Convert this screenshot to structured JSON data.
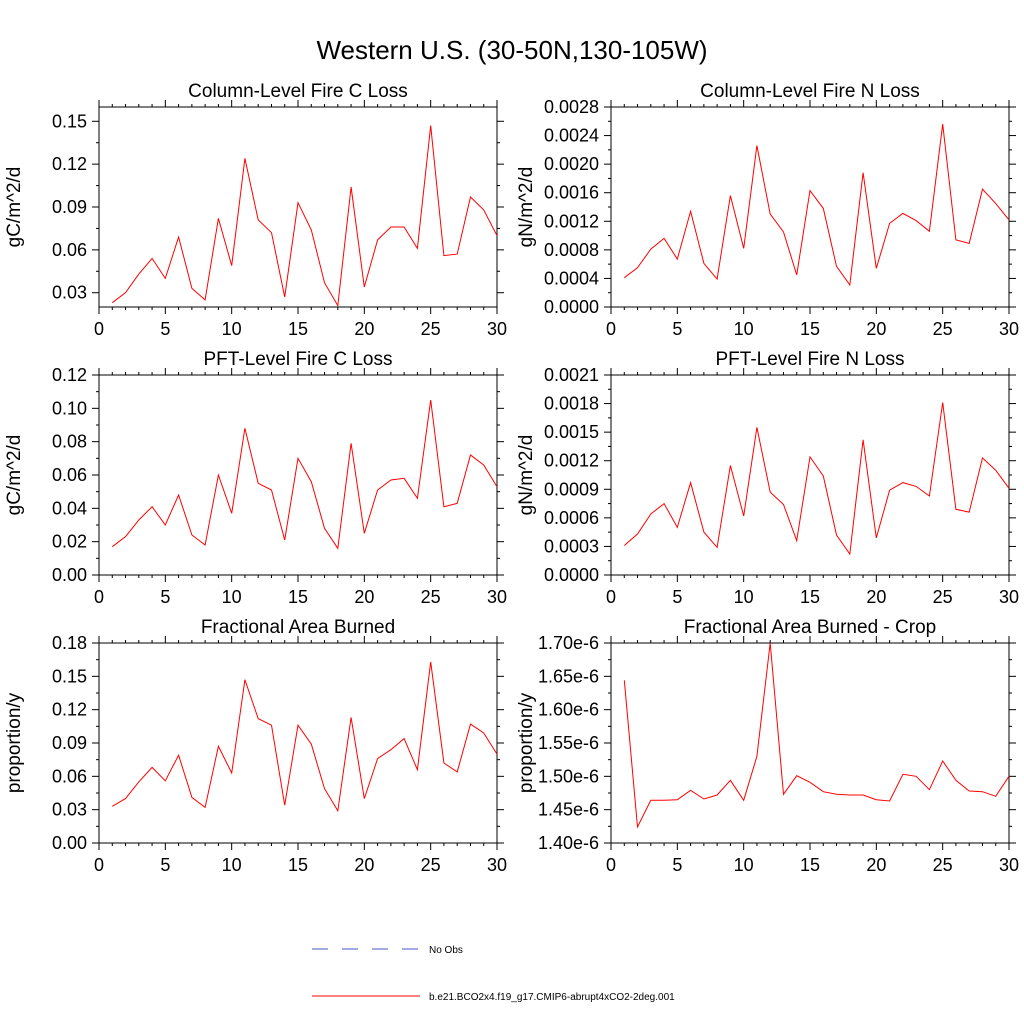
{
  "figure": {
    "title": "Western U.S. (30-50N,130-105W)",
    "series_color": "#ff0000",
    "obs_color": "#4a55c8"
  },
  "legend": {
    "items": [
      {
        "label": "No Obs",
        "style": "dashed",
        "color": "#4a55c8"
      },
      {
        "label": "b.e21.BCO2x4.f19_g17.CMIP6-abrupt4xCO2-2deg.001",
        "style": "solid",
        "color": "#ff0000"
      }
    ]
  },
  "chart_data": [
    {
      "type": "line",
      "title": "Column-Level Fire C Loss",
      "ylabel": "gC/m^2/d",
      "xlim": [
        0,
        30
      ],
      "xticks": [
        0,
        5,
        10,
        15,
        20,
        25,
        30
      ],
      "xticklabels": [
        "0",
        "5",
        "10",
        "15",
        "20",
        "25",
        "30"
      ],
      "ylim": [
        0.02,
        0.16
      ],
      "yticks": [
        0.03,
        0.06,
        0.09,
        0.12,
        0.15
      ],
      "yticklabels": [
        "0.03",
        "0.06",
        "0.09",
        "0.12",
        "0.15"
      ],
      "x": [
        1,
        2,
        3,
        4,
        5,
        6,
        7,
        8,
        9,
        10,
        11,
        12,
        13,
        14,
        15,
        16,
        17,
        18,
        19,
        20,
        21,
        22,
        23,
        24,
        25,
        26,
        27,
        28,
        29,
        30
      ],
      "series": [
        {
          "name": "b.e21.BCO2x4.f19_g17.CMIP6-abrupt4xCO2-2deg.001",
          "values": [
            0.023,
            0.03,
            0.043,
            0.054,
            0.04,
            0.069,
            0.033,
            0.025,
            0.082,
            0.049,
            0.124,
            0.081,
            0.072,
            0.027,
            0.093,
            0.074,
            0.037,
            0.021,
            0.104,
            0.034,
            0.067,
            0.076,
            0.076,
            0.061,
            0.147,
            0.056,
            0.057,
            0.097,
            0.088,
            0.07
          ]
        }
      ]
    },
    {
      "type": "line",
      "title": "Column-Level Fire N Loss",
      "ylabel": "gN/m^2/d",
      "xlim": [
        0,
        30
      ],
      "xticks": [
        0,
        5,
        10,
        15,
        20,
        25,
        30
      ],
      "xticklabels": [
        "0",
        "5",
        "10",
        "15",
        "20",
        "25",
        "30"
      ],
      "ylim": [
        0.0,
        0.0028
      ],
      "yticks": [
        0.0,
        0.0004,
        0.0008,
        0.0012,
        0.0016,
        0.002,
        0.0024,
        0.0028
      ],
      "yticklabels": [
        "0.0000",
        "0.0004",
        "0.0008",
        "0.0012",
        "0.0016",
        "0.0020",
        "0.0024",
        "0.0028"
      ],
      "x": [
        1,
        2,
        3,
        4,
        5,
        6,
        7,
        8,
        9,
        10,
        11,
        12,
        13,
        14,
        15,
        16,
        17,
        18,
        19,
        20,
        21,
        22,
        23,
        24,
        25,
        26,
        27,
        28,
        29,
        30
      ],
      "series": [
        {
          "name": "b.e21.BCO2x4.f19_g17.CMIP6-abrupt4xCO2-2deg.001",
          "values": [
            0.00041,
            0.00055,
            0.00081,
            0.00096,
            0.00067,
            0.00134,
            0.00061,
            0.00039,
            0.00156,
            0.00082,
            0.00226,
            0.0013,
            0.00105,
            0.00045,
            0.00163,
            0.00138,
            0.00057,
            0.00031,
            0.00188,
            0.00054,
            0.00117,
            0.00131,
            0.00121,
            0.00106,
            0.00256,
            0.00094,
            0.00089,
            0.00165,
            0.00145,
            0.00122
          ]
        }
      ]
    },
    {
      "type": "line",
      "title": "PFT-Level Fire C Loss",
      "ylabel": "gC/m^2/d",
      "xlim": [
        0,
        30
      ],
      "xticks": [
        0,
        5,
        10,
        15,
        20,
        25,
        30
      ],
      "xticklabels": [
        "0",
        "5",
        "10",
        "15",
        "20",
        "25",
        "30"
      ],
      "ylim": [
        0.0,
        0.12
      ],
      "yticks": [
        0.0,
        0.02,
        0.04,
        0.06,
        0.08,
        0.1,
        0.12
      ],
      "yticklabels": [
        "0.00",
        "0.02",
        "0.04",
        "0.06",
        "0.08",
        "0.10",
        "0.12"
      ],
      "x": [
        1,
        2,
        3,
        4,
        5,
        6,
        7,
        8,
        9,
        10,
        11,
        12,
        13,
        14,
        15,
        16,
        17,
        18,
        19,
        20,
        21,
        22,
        23,
        24,
        25,
        26,
        27,
        28,
        29,
        30
      ],
      "series": [
        {
          "name": "b.e21.BCO2x4.f19_g17.CMIP6-abrupt4xCO2-2deg.001",
          "values": [
            0.017,
            0.023,
            0.033,
            0.041,
            0.03,
            0.048,
            0.024,
            0.018,
            0.06,
            0.037,
            0.088,
            0.055,
            0.051,
            0.021,
            0.07,
            0.056,
            0.028,
            0.016,
            0.079,
            0.025,
            0.051,
            0.057,
            0.058,
            0.046,
            0.105,
            0.041,
            0.043,
            0.072,
            0.066,
            0.053
          ]
        }
      ]
    },
    {
      "type": "line",
      "title": "PFT-Level Fire N Loss",
      "ylabel": "gN/m^2/d",
      "xlim": [
        0,
        30
      ],
      "xticks": [
        0,
        5,
        10,
        15,
        20,
        25,
        30
      ],
      "xticklabels": [
        "0",
        "5",
        "10",
        "15",
        "20",
        "25",
        "30"
      ],
      "ylim": [
        0.0,
        0.0021
      ],
      "yticks": [
        0.0,
        0.0003,
        0.0006,
        0.0009,
        0.0012,
        0.0015,
        0.0018,
        0.0021
      ],
      "yticklabels": [
        "0.0000",
        "0.0003",
        "0.0006",
        "0.0009",
        "0.0012",
        "0.0015",
        "0.0018",
        "0.0021"
      ],
      "x": [
        1,
        2,
        3,
        4,
        5,
        6,
        7,
        8,
        9,
        10,
        11,
        12,
        13,
        14,
        15,
        16,
        17,
        18,
        19,
        20,
        21,
        22,
        23,
        24,
        25,
        26,
        27,
        28,
        29,
        30
      ],
      "series": [
        {
          "name": "b.e21.BCO2x4.f19_g17.CMIP6-abrupt4xCO2-2deg.001",
          "values": [
            0.00031,
            0.00043,
            0.00064,
            0.00075,
            0.0005,
            0.00097,
            0.00045,
            0.00029,
            0.00115,
            0.00062,
            0.00155,
            0.00087,
            0.00074,
            0.00036,
            0.00124,
            0.00104,
            0.00042,
            0.00022,
            0.00142,
            0.00039,
            0.00089,
            0.00097,
            0.00093,
            0.00083,
            0.00181,
            0.00069,
            0.00066,
            0.00123,
            0.0011,
            0.00091
          ]
        }
      ]
    },
    {
      "type": "line",
      "title": "Fractional Area Burned",
      "ylabel": "proportion/y",
      "xlim": [
        0,
        30
      ],
      "xticks": [
        0,
        5,
        10,
        15,
        20,
        25,
        30
      ],
      "xticklabels": [
        "0",
        "5",
        "10",
        "15",
        "20",
        "25",
        "30"
      ],
      "ylim": [
        0.0,
        0.18
      ],
      "yticks": [
        0.0,
        0.03,
        0.06,
        0.09,
        0.12,
        0.15,
        0.18
      ],
      "yticklabels": [
        "0.00",
        "0.03",
        "0.06",
        "0.09",
        "0.12",
        "0.15",
        "0.18"
      ],
      "x": [
        1,
        2,
        3,
        4,
        5,
        6,
        7,
        8,
        9,
        10,
        11,
        12,
        13,
        14,
        15,
        16,
        17,
        18,
        19,
        20,
        21,
        22,
        23,
        24,
        25,
        26,
        27,
        28,
        29,
        30
      ],
      "series": [
        {
          "name": "b.e21.BCO2x4.f19_g17.CMIP6-abrupt4xCO2-2deg.001",
          "values": [
            0.033,
            0.04,
            0.055,
            0.068,
            0.056,
            0.079,
            0.041,
            0.032,
            0.087,
            0.063,
            0.147,
            0.112,
            0.106,
            0.034,
            0.106,
            0.089,
            0.049,
            0.029,
            0.113,
            0.04,
            0.076,
            0.084,
            0.094,
            0.066,
            0.163,
            0.072,
            0.064,
            0.107,
            0.099,
            0.08
          ]
        }
      ]
    },
    {
      "type": "line",
      "title": "Fractional Area Burned - Crop",
      "ylabel": "proportion/y",
      "xlim": [
        0,
        30
      ],
      "xticks": [
        0,
        5,
        10,
        15,
        20,
        25,
        30
      ],
      "xticklabels": [
        "0",
        "5",
        "10",
        "15",
        "20",
        "25",
        "30"
      ],
      "ylim": [
        1.4e-06,
        1.7e-06
      ],
      "yticks": [
        1.4e-06,
        1.45e-06,
        1.5e-06,
        1.55e-06,
        1.6e-06,
        1.65e-06,
        1.7e-06
      ],
      "yticklabels": [
        "1.40e-6",
        "1.45e-6",
        "1.50e-6",
        "1.55e-6",
        "1.60e-6",
        "1.65e-6",
        "1.70e-6"
      ],
      "x": [
        1,
        2,
        3,
        4,
        5,
        6,
        7,
        8,
        9,
        10,
        11,
        12,
        13,
        14,
        15,
        16,
        17,
        18,
        19,
        20,
        21,
        22,
        23,
        24,
        25,
        26,
        27,
        28,
        29,
        30
      ],
      "series": [
        {
          "name": "b.e21.BCO2x4.f19_g17.CMIP6-abrupt4xCO2-2deg.001",
          "values": [
            1.644e-06,
            1.424e-06,
            1.464e-06,
            1.464e-06,
            1.465e-06,
            1.479e-06,
            1.466e-06,
            1.472e-06,
            1.494e-06,
            1.464e-06,
            1.53e-06,
            1.7e-06,
            1.473e-06,
            1.501e-06,
            1.491e-06,
            1.477e-06,
            1.473e-06,
            1.472e-06,
            1.472e-06,
            1.465e-06,
            1.463e-06,
            1.503e-06,
            1.5e-06,
            1.48e-06,
            1.523e-06,
            1.494e-06,
            1.478e-06,
            1.477e-06,
            1.47e-06,
            1.5e-06
          ]
        }
      ]
    }
  ]
}
